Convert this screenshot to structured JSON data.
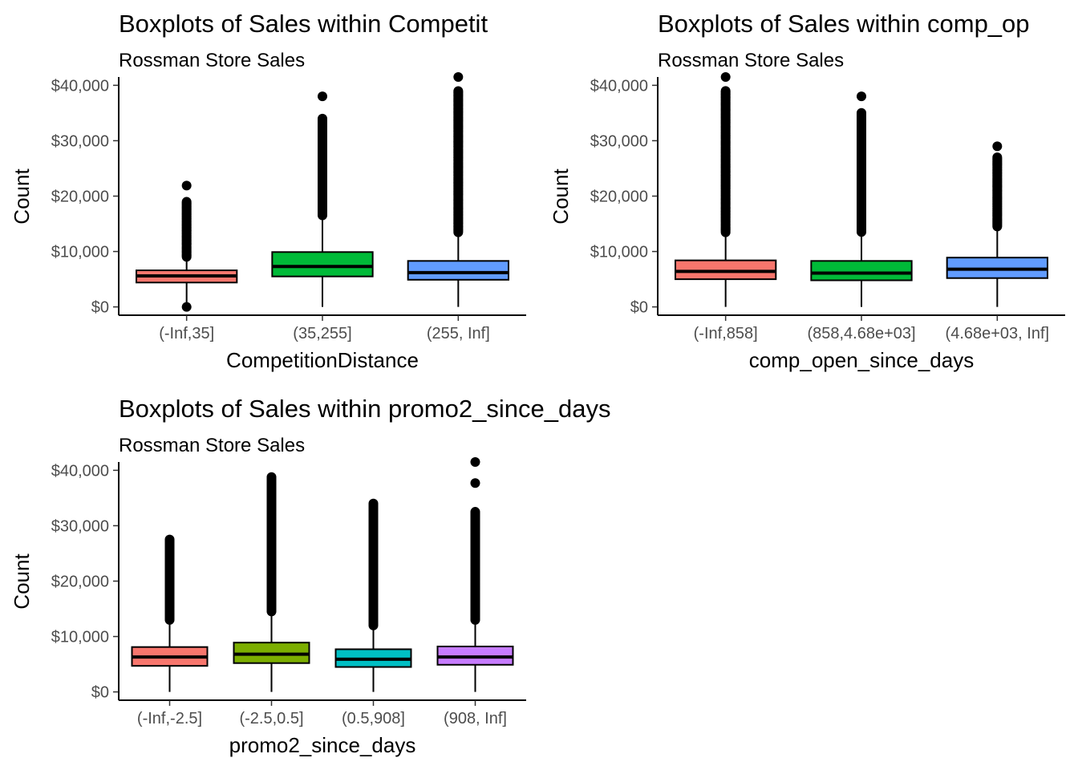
{
  "chart_data": [
    {
      "type": "boxplot",
      "title": "Boxplots of Sales within Competit",
      "subtitle": "Rossman Store Sales",
      "xlabel": "CompetitionDistance",
      "ylabel": "Count",
      "ylim": [
        -1500,
        41500
      ],
      "yticks": [
        0,
        10000,
        20000,
        30000,
        40000
      ],
      "ytick_labels": [
        "$0",
        "$10,000",
        "$20,000",
        "$30,000",
        "$40,000"
      ],
      "grid": false,
      "legend": "none",
      "categories": [
        {
          "label": "(-Inf,35]",
          "color": "#F8766D",
          "min": 0,
          "q1": 4400,
          "median": 5600,
          "q3": 6600,
          "max": 9000,
          "outlier_band": [
            9000,
            19000
          ],
          "outliers": [
            21900,
            0
          ]
        },
        {
          "label": "(35,255]",
          "color": "#00BA38",
          "min": 0,
          "q1": 5500,
          "median": 7300,
          "q3": 9900,
          "max": 16500,
          "outlier_band": [
            16500,
            34000
          ],
          "outliers": [
            38000
          ]
        },
        {
          "label": "(255, Inf]",
          "color": "#619CFF",
          "min": 0,
          "q1": 4900,
          "median": 6200,
          "q3": 8300,
          "max": 13500,
          "outlier_band": [
            13500,
            39000
          ],
          "outliers": [
            41500
          ]
        }
      ]
    },
    {
      "type": "boxplot",
      "title": "Boxplots of Sales within comp_op",
      "subtitle": "Rossman Store Sales",
      "xlabel": "comp_open_since_days",
      "ylabel": "Count",
      "ylim": [
        -1500,
        41500
      ],
      "yticks": [
        0,
        10000,
        20000,
        30000,
        40000
      ],
      "ytick_labels": [
        "$0",
        "$10,000",
        "$20,000",
        "$30,000",
        "$40,000"
      ],
      "grid": false,
      "legend": "none",
      "categories": [
        {
          "label": "(-Inf,858]",
          "color": "#F8766D",
          "min": 0,
          "q1": 5000,
          "median": 6400,
          "q3": 8400,
          "max": 13500,
          "outlier_band": [
            13500,
            39000
          ],
          "outliers": [
            41500
          ]
        },
        {
          "label": "(858,4.68e+03]",
          "color": "#00BA38",
          "min": 0,
          "q1": 4800,
          "median": 6100,
          "q3": 8300,
          "max": 13500,
          "outlier_band": [
            13500,
            35000
          ],
          "outliers": [
            38000
          ]
        },
        {
          "label": "(4.68e+03, Inf]",
          "color": "#619CFF",
          "min": 0,
          "q1": 5200,
          "median": 6800,
          "q3": 8900,
          "max": 14500,
          "outlier_band": [
            14500,
            27000
          ],
          "outliers": [
            29000
          ]
        }
      ]
    },
    {
      "type": "boxplot",
      "title": "Boxplots of Sales within promo2_since_days",
      "subtitle": "Rossman Store Sales",
      "xlabel": "promo2_since_days",
      "ylabel": "Count",
      "ylim": [
        -1500,
        41500
      ],
      "yticks": [
        0,
        10000,
        20000,
        30000,
        40000
      ],
      "ytick_labels": [
        "$0",
        "$10,000",
        "$20,000",
        "$30,000",
        "$40,000"
      ],
      "grid": false,
      "legend": "none",
      "categories": [
        {
          "label": "(-Inf,-2.5]",
          "color": "#F8766D",
          "min": 0,
          "q1": 4700,
          "median": 6300,
          "q3": 8100,
          "max": 13000,
          "outlier_band": [
            13000,
            27500
          ],
          "outliers": []
        },
        {
          "label": "(-2.5,0.5]",
          "color": "#7CAE00",
          "min": 0,
          "q1": 5200,
          "median": 6800,
          "q3": 8900,
          "max": 14500,
          "outlier_band": [
            14500,
            38800
          ],
          "outliers": []
        },
        {
          "label": "(0.5,908]",
          "color": "#00BFC4",
          "min": 0,
          "q1": 4500,
          "median": 5900,
          "q3": 7700,
          "max": 12000,
          "outlier_band": [
            12000,
            34000
          ],
          "outliers": []
        },
        {
          "label": "(908, Inf]",
          "color": "#C77CFF",
          "min": 0,
          "q1": 4900,
          "median": 6300,
          "q3": 8200,
          "max": 13000,
          "outlier_band": [
            13000,
            32500
          ],
          "outliers": [
            37700,
            41500
          ]
        }
      ]
    }
  ]
}
